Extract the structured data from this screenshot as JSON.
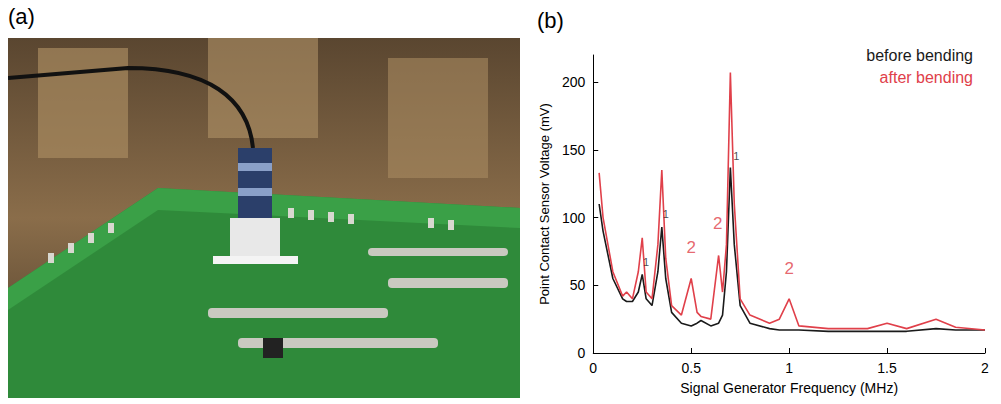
{
  "photo_panel": {
    "label": "(a)"
  },
  "chart_data": {
    "type": "line",
    "panel_label": "(b)",
    "x_label": "Signal Generator Frequency (MHz)",
    "y_label": "Point Contact Sensor Voltage (mV)",
    "x": [
      0.03,
      0.05,
      0.1,
      0.15,
      0.17,
      0.2,
      0.23,
      0.25,
      0.27,
      0.3,
      0.33,
      0.35,
      0.37,
      0.4,
      0.45,
      0.5,
      0.53,
      0.55,
      0.6,
      0.64,
      0.66,
      0.68,
      0.7,
      0.72,
      0.75,
      0.8,
      0.9,
      0.95,
      1.0,
      1.05,
      1.2,
      1.4,
      1.5,
      1.6,
      1.75,
      1.85,
      2.0
    ],
    "series": [
      {
        "name": "before bending",
        "color": "#1a1a1a",
        "values": [
          110,
          90,
          55,
          40,
          38,
          38,
          45,
          58,
          40,
          35,
          60,
          93,
          55,
          30,
          22,
          20,
          22,
          24,
          20,
          22,
          28,
          60,
          137,
          80,
          35,
          22,
          18,
          17,
          17,
          17,
          16,
          16,
          16,
          16,
          18,
          17,
          17
        ]
      },
      {
        "name": "after bending",
        "color": "#e0404a",
        "values": [
          133,
          100,
          60,
          42,
          45,
          40,
          60,
          85,
          45,
          40,
          80,
          135,
          70,
          35,
          28,
          55,
          30,
          27,
          25,
          72,
          45,
          80,
          207,
          110,
          40,
          28,
          22,
          25,
          40,
          20,
          18,
          18,
          22,
          18,
          25,
          19,
          17
        ]
      }
    ],
    "xlim": [
      0,
      2
    ],
    "xticks": [
      0,
      0.5,
      1,
      1.5,
      2
    ],
    "ylim": [
      0,
      220
    ],
    "yticks": [
      0,
      50,
      100,
      150,
      200
    ],
    "grid": false,
    "legend": "upper right",
    "annotations": [
      {
        "text": "1",
        "x": 0.27,
        "y": 62,
        "color": "#1a1a1a"
      },
      {
        "text": "1",
        "x": 0.37,
        "y": 97,
        "color": "#1a1a1a"
      },
      {
        "text": "1",
        "x": 0.73,
        "y": 140,
        "color": "#1a1a1a"
      },
      {
        "text": "2",
        "x": 0.5,
        "y": 70,
        "color": "#e0404a"
      },
      {
        "text": "2",
        "x": 0.635,
        "y": 88,
        "color": "#e0404a"
      },
      {
        "text": "2",
        "x": 1.0,
        "y": 55,
        "color": "#e0404a"
      }
    ]
  }
}
